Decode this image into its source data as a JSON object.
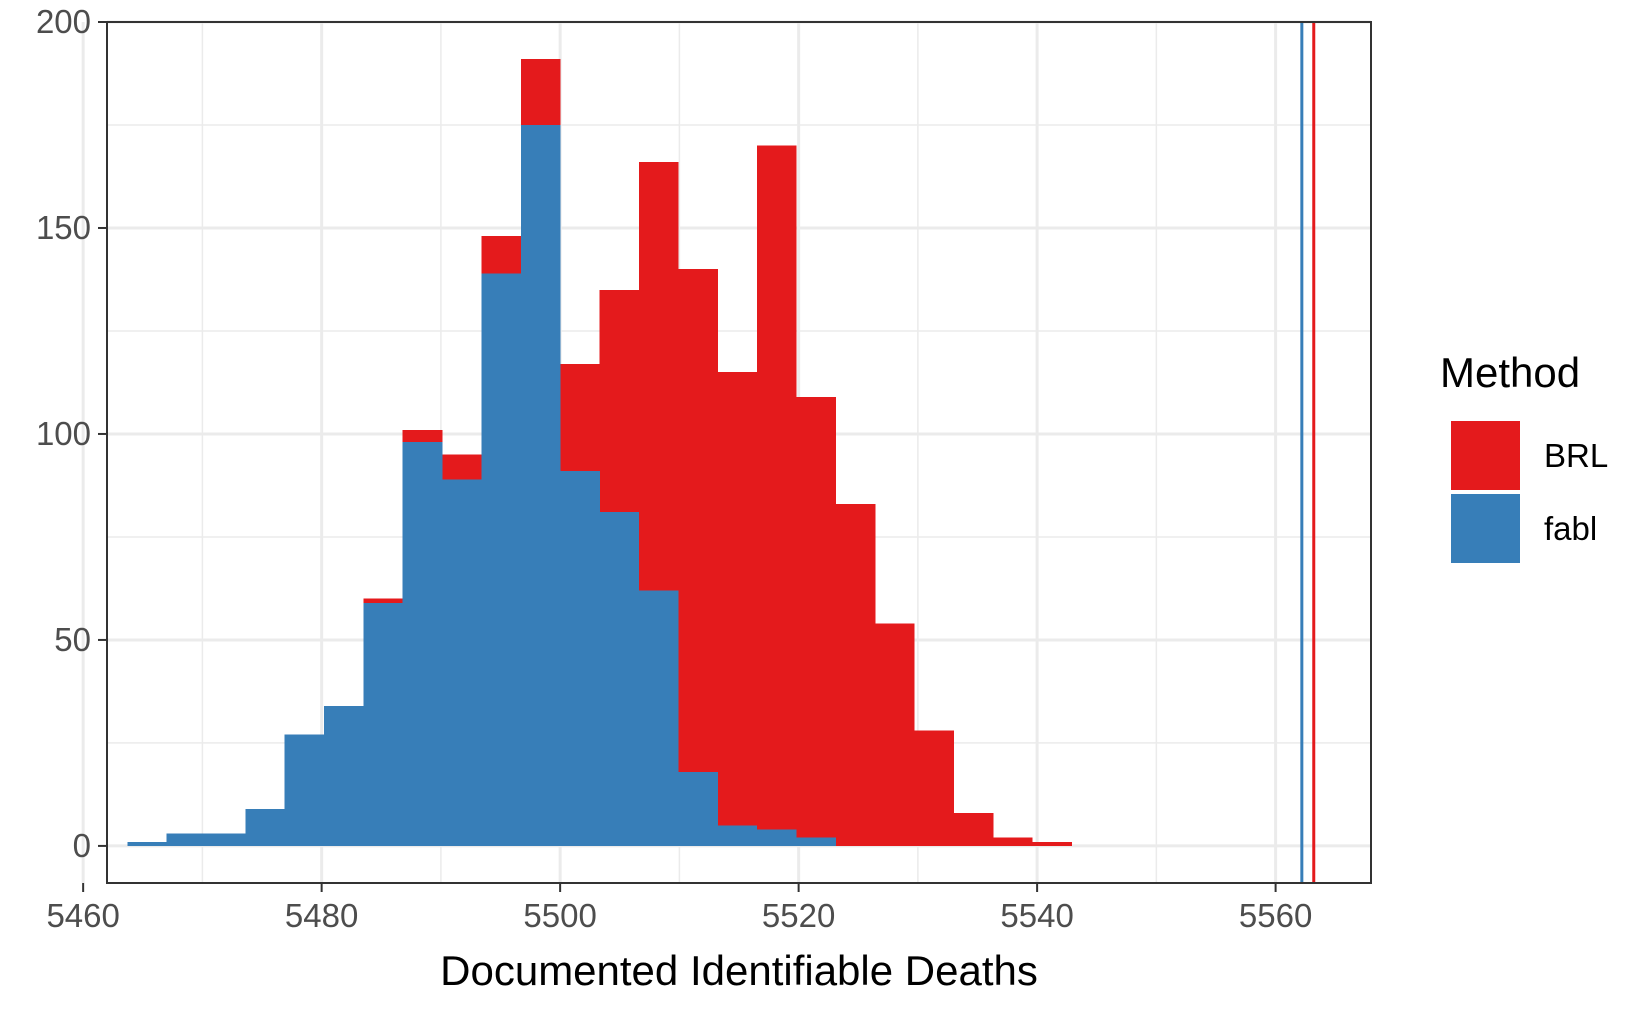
{
  "chart_data": {
    "type": "bar",
    "subtype": "histogram",
    "title": "",
    "xlabel": "Documented Identifiable Deaths",
    "ylabel": "",
    "xlim": [
      5462,
      5568
    ],
    "ylim": [
      -9,
      200
    ],
    "x_ticks": [
      5460,
      5480,
      5500,
      5520,
      5540,
      5560
    ],
    "y_ticks": [
      0,
      50,
      100,
      150,
      200
    ],
    "grid": true,
    "bin_width": 3.33,
    "bin_starts": [
      5463.7,
      5467.0,
      5470.3,
      5473.6,
      5476.9,
      5480.2,
      5483.5,
      5486.8,
      5490.1,
      5493.4,
      5496.7,
      5500.0,
      5503.3,
      5506.6,
      5509.9,
      5513.2,
      5516.5,
      5519.8,
      5523.1,
      5526.4,
      5529.7,
      5533.0,
      5536.3,
      5539.6
    ],
    "series": [
      {
        "name": "BRL",
        "color": "#E41A1C",
        "values": [
          0,
          0,
          0,
          0,
          0,
          0,
          60,
          101,
          95,
          148,
          191,
          117,
          135,
          166,
          140,
          115,
          170,
          109,
          83,
          54,
          28,
          8,
          2,
          1
        ]
      },
      {
        "name": "fabl",
        "color": "#377EB8",
        "values": [
          1,
          3,
          3,
          9,
          27,
          34,
          59,
          98,
          89,
          139,
          175,
          91,
          81,
          62,
          18,
          5,
          4,
          2,
          0,
          0,
          0,
          0,
          0,
          0
        ]
      }
    ],
    "vlines": [
      {
        "series": "fabl",
        "x": 5562.2,
        "color": "#377EB8"
      },
      {
        "series": "BRL",
        "x": 5563.2,
        "color": "#E41A1C"
      }
    ],
    "legend": {
      "title": "Method",
      "position": "right",
      "items": [
        {
          "label": "BRL",
          "color": "#E41A1C"
        },
        {
          "label": "fabl",
          "color": "#377EB8"
        }
      ]
    }
  }
}
